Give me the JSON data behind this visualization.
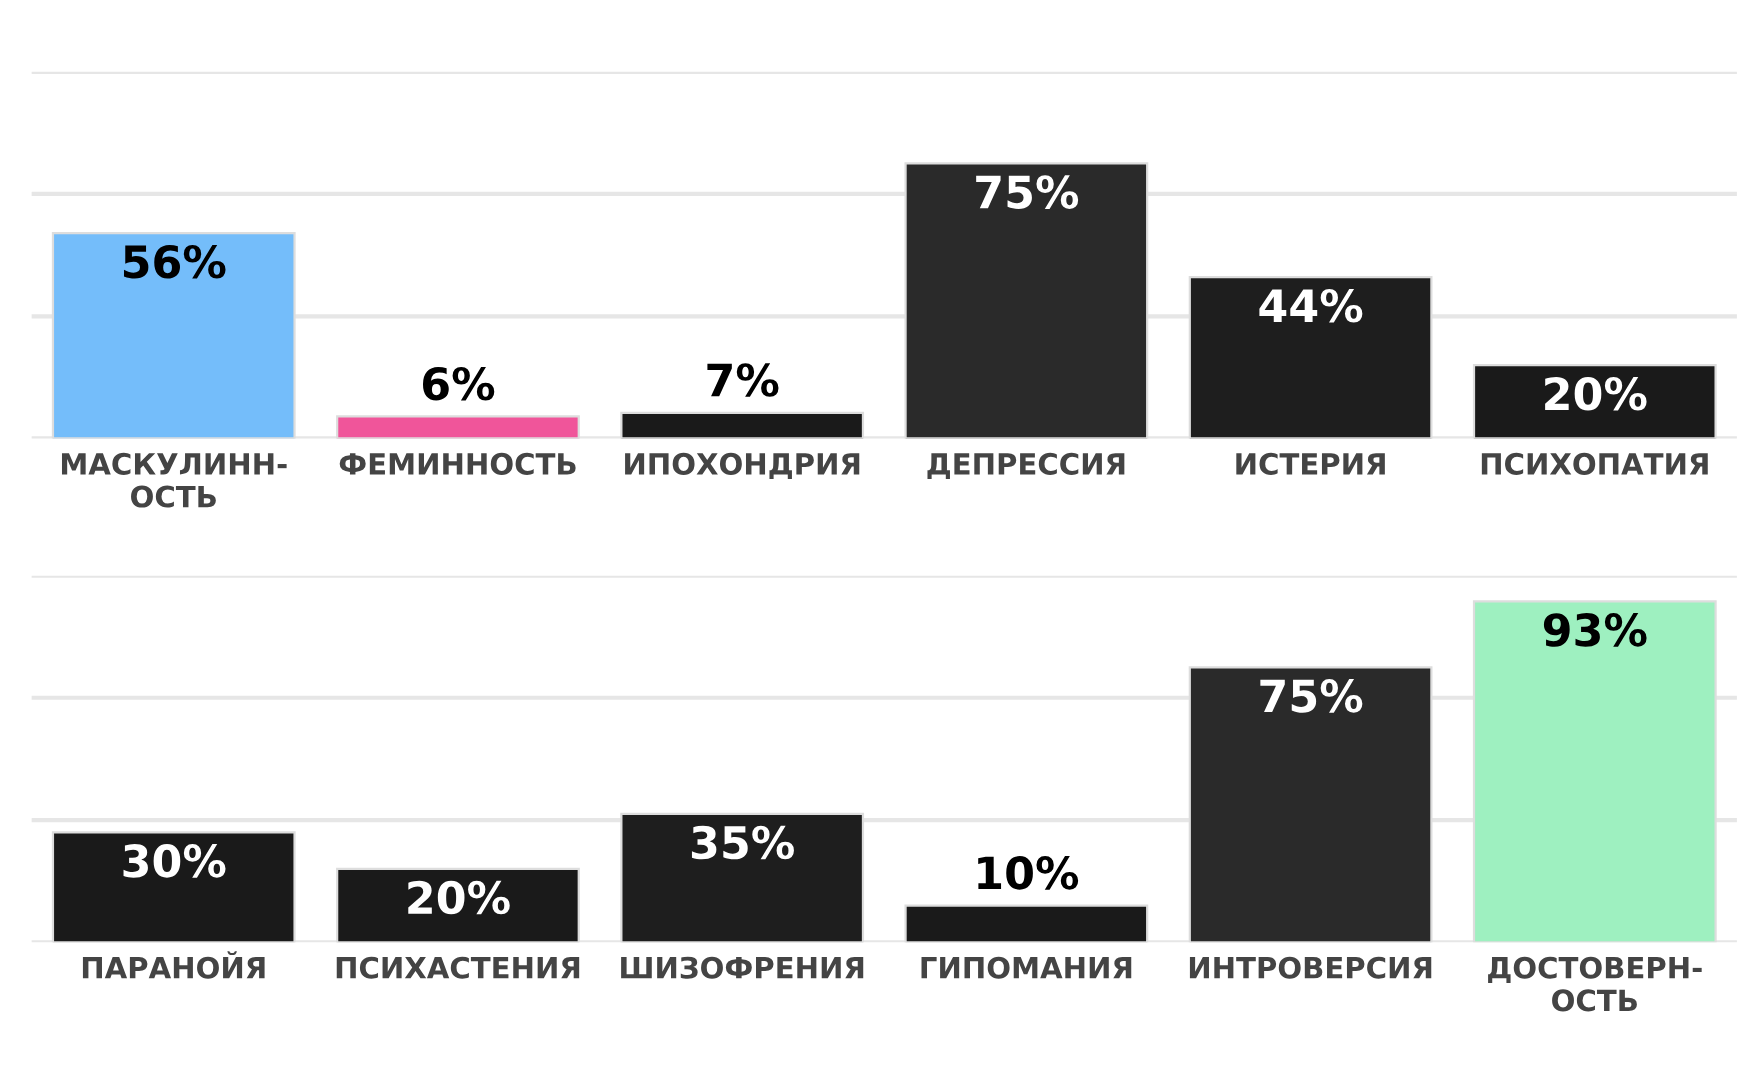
{
  "chart_data": [
    {
      "type": "bar",
      "categories": [
        "МАСКУЛИНН-\nОСТЬ",
        "ФЕМИННОСТЬ",
        "ИПОХОНДРИЯ",
        "ДЕПРЕССИЯ",
        "ИСТЕРИЯ",
        "ПСИХОПАТИЯ"
      ],
      "values": [
        56,
        6,
        7,
        75,
        44,
        20
      ],
      "colors": [
        "#74bdfa",
        "#f0559a",
        "#1a1a1a",
        "#2a2a2a",
        "#1e1e1e",
        "#1a1a1a"
      ],
      "value_labels": [
        "56%",
        "6%",
        "7%",
        "75%",
        "44%",
        "20%"
      ],
      "ylim": [
        0,
        100
      ],
      "yticks": [
        {
          "value": 0,
          "label": null
        },
        {
          "value": 33.3,
          "label": null
        },
        {
          "value": 66.7,
          "label": null
        },
        {
          "value": 100,
          "label": null
        }
      ],
      "grid": "y",
      "tick_labels": "x"
    },
    {
      "type": "bar",
      "categories": [
        "ПАРАНОЙЯ",
        "ПСИХАСТЕНИЯ",
        "ШИЗОФРЕНИЯ",
        "ГИПОМАНИЯ",
        "ИНТРОВЕРСИЯ",
        "ДОСТОВЕРН-\nОСТЬ"
      ],
      "values": [
        30,
        20,
        35,
        10,
        75,
        93
      ],
      "colors": [
        "#1a1a1a",
        "#1a1a1a",
        "#1e1e1e",
        "#1a1a1a",
        "#2a2a2a",
        "#9ef0c0"
      ],
      "value_labels": [
        "30%",
        "20%",
        "35%",
        "10%",
        "75%",
        "93%"
      ],
      "ylim": [
        0,
        100
      ],
      "yticks": [
        {
          "value": 0,
          "label": null
        },
        {
          "value": 33.3,
          "label": null
        },
        {
          "value": 66.7,
          "label": null
        },
        {
          "value": 100,
          "label": null
        }
      ],
      "grid": "y",
      "tick_labels": "x"
    }
  ]
}
